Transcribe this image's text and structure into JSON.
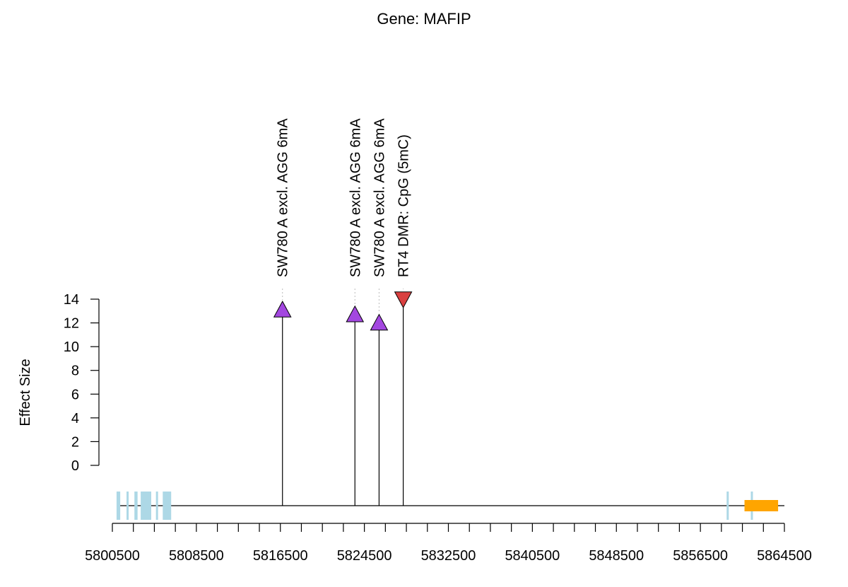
{
  "chart_data": {
    "type": "lollipop",
    "title": "Gene: MAFIP",
    "ylabel": "Effect Size",
    "xlabel": "",
    "ylim": [
      0,
      14
    ],
    "y_ticks": [
      "0",
      "2",
      "4",
      "6",
      "8",
      "10",
      "12",
      "14"
    ],
    "xlim": [
      5800500,
      5864500
    ],
    "x_tick_step": 2000,
    "x_tick_labels": [
      "5800500",
      "5808500",
      "5816500",
      "5824500",
      "5832500",
      "5840500",
      "5848500",
      "5856500",
      "5864500"
    ],
    "variants": [
      {
        "label": "SW780 A excl. AGG 6mA",
        "position": 5816700,
        "effect": 13.1,
        "direction": "up",
        "color": "#A347E0"
      },
      {
        "label": "SW780 A excl. AGG 6mA",
        "position": 5823600,
        "effect": 12.7,
        "direction": "up",
        "color": "#A347E0"
      },
      {
        "label": "SW780 A excl. AGG 6mA",
        "position": 5825900,
        "effect": 12.0,
        "direction": "up",
        "color": "#A347E0"
      },
      {
        "label": "RT4 DMR: CpG (5mC)",
        "position": 5828200,
        "effect": 14.0,
        "direction": "down",
        "color": "#D94040"
      }
    ],
    "gene_track": {
      "line_start": 5800500,
      "line_end": 5864500,
      "exon_color": "#ADD8E6",
      "utr_color": "#FFA500",
      "exons": [
        [
          5800900,
          5801250
        ],
        [
          5801850,
          5802050
        ],
        [
          5802600,
          5802900
        ],
        [
          5803200,
          5804200
        ],
        [
          5804650,
          5804850
        ],
        [
          5805300,
          5806100
        ],
        [
          5859000,
          5859200
        ],
        [
          5861300,
          5861500
        ]
      ],
      "utr": [
        [
          5860700,
          5863900
        ]
      ]
    }
  }
}
